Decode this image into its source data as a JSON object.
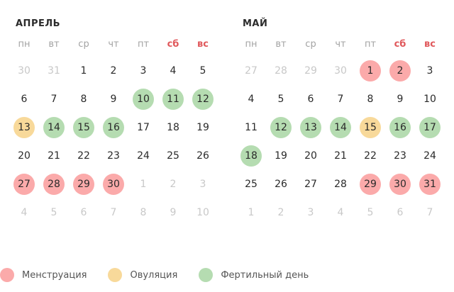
{
  "weekdays": [
    "пн",
    "вт",
    "ср",
    "чт",
    "пт",
    "сб",
    "вс"
  ],
  "weekend_indices": [
    5,
    6
  ],
  "colors": {
    "menstruation": "#fbaaaa",
    "ovulation": "#f8d99a",
    "fertile": "#b5dcb1",
    "weekend": "#e0585b"
  },
  "months": [
    {
      "title": "АПРЕЛЬ",
      "weeks": [
        [
          {
            "d": "30",
            "o": true
          },
          {
            "d": "31",
            "o": true
          },
          {
            "d": "1"
          },
          {
            "d": "2"
          },
          {
            "d": "3"
          },
          {
            "d": "4"
          },
          {
            "d": "5"
          }
        ],
        [
          {
            "d": "6"
          },
          {
            "d": "7"
          },
          {
            "d": "8"
          },
          {
            "d": "9"
          },
          {
            "d": "10",
            "t": "fertile"
          },
          {
            "d": "11",
            "t": "fertile"
          },
          {
            "d": "12",
            "t": "fertile"
          }
        ],
        [
          {
            "d": "13",
            "t": "ovulation"
          },
          {
            "d": "14",
            "t": "fertile"
          },
          {
            "d": "15",
            "t": "fertile"
          },
          {
            "d": "16",
            "t": "fertile"
          },
          {
            "d": "17"
          },
          {
            "d": "18"
          },
          {
            "d": "19"
          }
        ],
        [
          {
            "d": "20"
          },
          {
            "d": "21"
          },
          {
            "d": "22"
          },
          {
            "d": "23"
          },
          {
            "d": "24"
          },
          {
            "d": "25"
          },
          {
            "d": "26"
          }
        ],
        [
          {
            "d": "27",
            "t": "menstruation"
          },
          {
            "d": "28",
            "t": "menstruation"
          },
          {
            "d": "29",
            "t": "menstruation"
          },
          {
            "d": "30",
            "t": "menstruation"
          },
          {
            "d": "1",
            "o": true
          },
          {
            "d": "2",
            "o": true
          },
          {
            "d": "3",
            "o": true
          }
        ],
        [
          {
            "d": "4",
            "o": true
          },
          {
            "d": "5",
            "o": true
          },
          {
            "d": "6",
            "o": true
          },
          {
            "d": "7",
            "o": true
          },
          {
            "d": "8",
            "o": true
          },
          {
            "d": "9",
            "o": true
          },
          {
            "d": "10",
            "o": true
          }
        ]
      ]
    },
    {
      "title": "МАЙ",
      "weeks": [
        [
          {
            "d": "27",
            "o": true
          },
          {
            "d": "28",
            "o": true
          },
          {
            "d": "29",
            "o": true
          },
          {
            "d": "30",
            "o": true
          },
          {
            "d": "1",
            "t": "menstruation"
          },
          {
            "d": "2",
            "t": "menstruation"
          },
          {
            "d": "3"
          }
        ],
        [
          {
            "d": "4"
          },
          {
            "d": "5"
          },
          {
            "d": "6"
          },
          {
            "d": "7"
          },
          {
            "d": "8"
          },
          {
            "d": "9"
          },
          {
            "d": "10"
          }
        ],
        [
          {
            "d": "11"
          },
          {
            "d": "12",
            "t": "fertile"
          },
          {
            "d": "13",
            "t": "fertile"
          },
          {
            "d": "14",
            "t": "fertile"
          },
          {
            "d": "15",
            "t": "ovulation"
          },
          {
            "d": "16",
            "t": "fertile"
          },
          {
            "d": "17",
            "t": "fertile"
          }
        ],
        [
          {
            "d": "18",
            "t": "fertile"
          },
          {
            "d": "19"
          },
          {
            "d": "20"
          },
          {
            "d": "21"
          },
          {
            "d": "22"
          },
          {
            "d": "23"
          },
          {
            "d": "24"
          }
        ],
        [
          {
            "d": "25"
          },
          {
            "d": "26"
          },
          {
            "d": "27"
          },
          {
            "d": "28"
          },
          {
            "d": "29",
            "t": "menstruation"
          },
          {
            "d": "30",
            "t": "menstruation"
          },
          {
            "d": "31",
            "t": "menstruation"
          }
        ],
        [
          {
            "d": "1",
            "o": true
          },
          {
            "d": "2",
            "o": true
          },
          {
            "d": "3",
            "o": true
          },
          {
            "d": "4",
            "o": true
          },
          {
            "d": "5",
            "o": true
          },
          {
            "d": "6",
            "o": true
          },
          {
            "d": "7",
            "o": true
          }
        ]
      ]
    }
  ],
  "legend": [
    {
      "type": "menstruation",
      "label": "Менструация"
    },
    {
      "type": "ovulation",
      "label": "Овуляция"
    },
    {
      "type": "fertile",
      "label": "Фертильный день"
    }
  ]
}
